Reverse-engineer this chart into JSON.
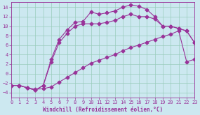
{
  "xlabel": "Windchill (Refroidissement éolien,°C)",
  "background_color": "#cce8f0",
  "grid_color": "#99ccbb",
  "line_color": "#993399",
  "xlim": [
    0,
    23
  ],
  "ylim": [
    -5,
    15
  ],
  "xticks": [
    0,
    1,
    2,
    3,
    4,
    5,
    6,
    7,
    8,
    9,
    10,
    11,
    12,
    13,
    14,
    15,
    16,
    17,
    18,
    19,
    20,
    21,
    22,
    23
  ],
  "yticks": [
    -4,
    -2,
    0,
    2,
    4,
    6,
    8,
    10,
    12,
    14
  ],
  "line1_x": [
    0,
    1,
    2,
    3,
    4,
    5,
    6,
    7,
    8,
    9,
    10,
    11,
    12,
    13,
    14,
    15,
    16,
    17,
    18,
    19,
    20,
    21,
    22,
    23
  ],
  "line1_y": [
    -2.5,
    -2.5,
    -3.0,
    -3.3,
    -3.2,
    -2.8,
    -1.8,
    -0.8,
    0.2,
    1.2,
    2.2,
    2.8,
    3.4,
    4.0,
    4.8,
    5.5,
    6.0,
    6.6,
    7.2,
    7.8,
    8.3,
    9.0,
    2.5,
    3.0
  ],
  "line2_x": [
    0,
    1,
    2,
    3,
    4,
    5,
    6,
    7,
    8,
    9,
    10,
    11,
    12,
    13,
    14,
    15,
    16,
    17,
    18,
    19,
    20,
    21,
    22,
    23
  ],
  "line2_y": [
    -2.5,
    -2.5,
    -3.0,
    -3.5,
    -2.5,
    3.0,
    7.2,
    9.2,
    10.8,
    11.0,
    13.0,
    12.5,
    12.8,
    13.2,
    14.0,
    14.5,
    14.2,
    13.5,
    12.0,
    10.0,
    10.0,
    9.5,
    9.0,
    6.5
  ],
  "line3_x": [
    0,
    1,
    2,
    3,
    4,
    5,
    6,
    7,
    8,
    9,
    10,
    11,
    12,
    13,
    14,
    15,
    16,
    17,
    18,
    19,
    20,
    21,
    22,
    23
  ],
  "line3_y": [
    -2.5,
    -2.5,
    -3.0,
    -3.5,
    -2.5,
    2.5,
    6.5,
    8.5,
    10.0,
    10.5,
    10.5,
    10.5,
    10.8,
    11.2,
    12.0,
    12.5,
    12.0,
    12.0,
    11.5,
    10.0,
    10.0,
    9.5,
    9.0,
    6.5
  ],
  "marker": "D",
  "marker_size": 2.5,
  "linewidth": 0.8,
  "tick_fontsize": 5,
  "xlabel_fontsize": 5.5
}
